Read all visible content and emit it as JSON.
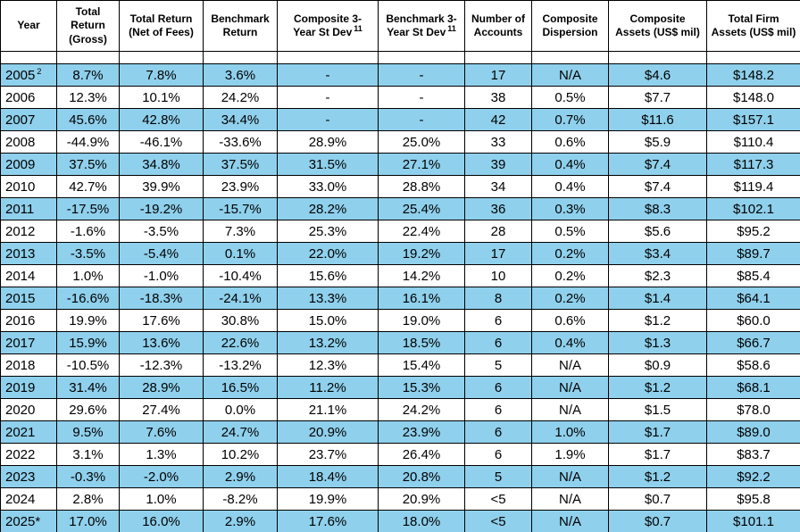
{
  "colors": {
    "row_highlight": "#8FD0EC",
    "grid_line": "#000000",
    "text": "#000000",
    "background": "#FFFFFF"
  },
  "table": {
    "columns": [
      {
        "label": "Year",
        "sup": ""
      },
      {
        "label": "Total\nReturn\n(Gross)",
        "sup": ""
      },
      {
        "label": "Total Return\n(Net of Fees)",
        "sup": ""
      },
      {
        "label": "Benchmark\nReturn",
        "sup": ""
      },
      {
        "label": "Composite 3-\nYear St Dev",
        "sup": "11"
      },
      {
        "label": "Benchmark 3-\nYear St Dev",
        "sup": "11"
      },
      {
        "label": "Number of\nAccounts",
        "sup": ""
      },
      {
        "label": "Composite\nDispersion",
        "sup": ""
      },
      {
        "label": "Composite\nAssets (US$ mil)",
        "sup": ""
      },
      {
        "label": "Total Firm\nAssets (US$ mil)",
        "sup": ""
      }
    ],
    "rows": [
      {
        "year": "2005",
        "year_sup": "2",
        "gross": "8.7%",
        "net": "7.8%",
        "benchmark": "3.6%",
        "comp_3yr_st_dev": "-",
        "bench_3yr_st_dev": "-",
        "num_accounts": "17",
        "dispersion": "N/A",
        "comp_assets": "$4.6",
        "firm_assets": "$148.2"
      },
      {
        "year": "2006",
        "gross": "12.3%",
        "net": "10.1%",
        "benchmark": "24.2%",
        "comp_3yr_st_dev": "-",
        "bench_3yr_st_dev": "-",
        "num_accounts": "38",
        "dispersion": "0.5%",
        "comp_assets": "$7.7",
        "firm_assets": "$148.0"
      },
      {
        "year": "2007",
        "gross": "45.6%",
        "net": "42.8%",
        "benchmark": "34.4%",
        "comp_3yr_st_dev": "-",
        "bench_3yr_st_dev": "-",
        "num_accounts": "42",
        "dispersion": "0.7%",
        "comp_assets": "$11.6",
        "firm_assets": "$157.1"
      },
      {
        "year": "2008",
        "gross": "-44.9%",
        "net": "-46.1%",
        "benchmark": "-33.6%",
        "comp_3yr_st_dev": "28.9%",
        "bench_3yr_st_dev": "25.0%",
        "num_accounts": "33",
        "dispersion": "0.6%",
        "comp_assets": "$5.9",
        "firm_assets": "$110.4"
      },
      {
        "year": "2009",
        "gross": "37.5%",
        "net": "34.8%",
        "benchmark": "37.5%",
        "comp_3yr_st_dev": "31.5%",
        "bench_3yr_st_dev": "27.1%",
        "num_accounts": "39",
        "dispersion": "0.4%",
        "comp_assets": "$7.4",
        "firm_assets": "$117.3"
      },
      {
        "year": "2010",
        "gross": "42.7%",
        "net": "39.9%",
        "benchmark": "23.9%",
        "comp_3yr_st_dev": "33.0%",
        "bench_3yr_st_dev": "28.8%",
        "num_accounts": "34",
        "dispersion": "0.4%",
        "comp_assets": "$7.4",
        "firm_assets": "$119.4"
      },
      {
        "year": "2011",
        "gross": "-17.5%",
        "net": "-19.2%",
        "benchmark": "-15.7%",
        "comp_3yr_st_dev": "28.2%",
        "bench_3yr_st_dev": "25.4%",
        "num_accounts": "36",
        "dispersion": "0.3%",
        "comp_assets": "$8.3",
        "firm_assets": "$102.1"
      },
      {
        "year": "2012",
        "gross": "-1.6%",
        "net": "-3.5%",
        "benchmark": "7.3%",
        "comp_3yr_st_dev": "25.3%",
        "bench_3yr_st_dev": "22.4%",
        "num_accounts": "28",
        "dispersion": "0.5%",
        "comp_assets": "$5.6",
        "firm_assets": "$95.2"
      },
      {
        "year": "2013",
        "gross": "-3.5%",
        "net": "-5.4%",
        "benchmark": "0.1%",
        "comp_3yr_st_dev": "22.0%",
        "bench_3yr_st_dev": "19.2%",
        "num_accounts": "17",
        "dispersion": "0.2%",
        "comp_assets": "$3.4",
        "firm_assets": "$89.7"
      },
      {
        "year": "2014",
        "gross": "1.0%",
        "net": "-1.0%",
        "benchmark": "-10.4%",
        "comp_3yr_st_dev": "15.6%",
        "bench_3yr_st_dev": "14.2%",
        "num_accounts": "10",
        "dispersion": "0.2%",
        "comp_assets": "$2.3",
        "firm_assets": "$85.4"
      },
      {
        "year": "2015",
        "gross": "-16.6%",
        "net": "-18.3%",
        "benchmark": "-24.1%",
        "comp_3yr_st_dev": "13.3%",
        "bench_3yr_st_dev": "16.1%",
        "num_accounts": "8",
        "dispersion": "0.2%",
        "comp_assets": "$1.4",
        "firm_assets": "$64.1"
      },
      {
        "year": "2016",
        "gross": "19.9%",
        "net": "17.6%",
        "benchmark": "30.8%",
        "comp_3yr_st_dev": "15.0%",
        "bench_3yr_st_dev": "19.0%",
        "num_accounts": "6",
        "dispersion": "0.6%",
        "comp_assets": "$1.2",
        "firm_assets": "$60.0"
      },
      {
        "year": "2017",
        "gross": "15.9%",
        "net": "13.6%",
        "benchmark": "22.6%",
        "comp_3yr_st_dev": "13.2%",
        "bench_3yr_st_dev": "18.5%",
        "num_accounts": "6",
        "dispersion": "0.4%",
        "comp_assets": "$1.3",
        "firm_assets": "$66.7"
      },
      {
        "year": "2018",
        "gross": "-10.5%",
        "net": "-12.3%",
        "benchmark": "-13.2%",
        "comp_3yr_st_dev": "12.3%",
        "bench_3yr_st_dev": "15.4%",
        "num_accounts": "5",
        "dispersion": "N/A",
        "comp_assets": "$0.9",
        "firm_assets": "$58.6"
      },
      {
        "year": "2019",
        "gross": "31.4%",
        "net": "28.9%",
        "benchmark": "16.5%",
        "comp_3yr_st_dev": "11.2%",
        "bench_3yr_st_dev": "15.3%",
        "num_accounts": "6",
        "dispersion": "N/A",
        "comp_assets": "$1.2",
        "firm_assets": "$68.1"
      },
      {
        "year": "2020",
        "gross": "29.6%",
        "net": "27.4%",
        "benchmark": "0.0%",
        "comp_3yr_st_dev": "21.1%",
        "bench_3yr_st_dev": "24.2%",
        "num_accounts": "6",
        "dispersion": "N/A",
        "comp_assets": "$1.5",
        "firm_assets": "$78.0"
      },
      {
        "year": "2021",
        "gross": "9.5%",
        "net": "7.6%",
        "benchmark": "24.7%",
        "comp_3yr_st_dev": "20.9%",
        "bench_3yr_st_dev": "23.9%",
        "num_accounts": "6",
        "dispersion": "1.0%",
        "comp_assets": "$1.7",
        "firm_assets": "$89.0"
      },
      {
        "year": "2022",
        "gross": "3.1%",
        "net": "1.3%",
        "benchmark": "10.2%",
        "comp_3yr_st_dev": "23.7%",
        "bench_3yr_st_dev": "26.4%",
        "num_accounts": "6",
        "dispersion": "1.9%",
        "comp_assets": "$1.7",
        "firm_assets": "$83.7"
      },
      {
        "year": "2023",
        "gross": "-0.3%",
        "net": "-2.0%",
        "benchmark": "2.9%",
        "comp_3yr_st_dev": "18.4%",
        "bench_3yr_st_dev": "20.8%",
        "num_accounts": "5",
        "dispersion": "N/A",
        "comp_assets": "$1.2",
        "firm_assets": "$92.2"
      },
      {
        "year": "2024",
        "gross": "2.8%",
        "net": "1.0%",
        "benchmark": "-8.2%",
        "comp_3yr_st_dev": "19.9%",
        "bench_3yr_st_dev": "20.9%",
        "num_accounts": "<5",
        "dispersion": "N/A",
        "comp_assets": "$0.7",
        "firm_assets": "$95.8"
      },
      {
        "year": "2025*",
        "gross": "17.0%",
        "net": "16.0%",
        "benchmark": "2.9%",
        "comp_3yr_st_dev": "17.6%",
        "bench_3yr_st_dev": "18.0%",
        "num_accounts": "<5",
        "dispersion": "N/A",
        "comp_assets": "$0.7",
        "firm_assets": "$101.1"
      }
    ]
  }
}
